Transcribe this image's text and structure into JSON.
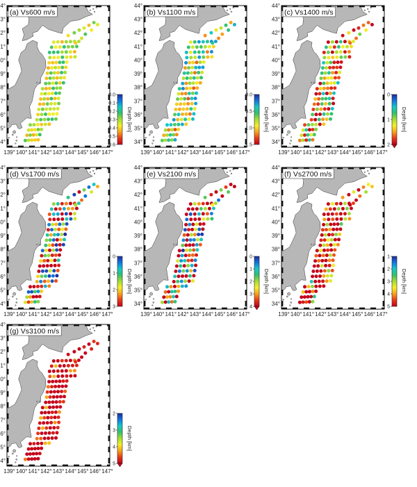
{
  "colors": {
    "land": "#b7b7b7",
    "sea": "#ffffff",
    "frame": "#111111",
    "label_box": "#ffffff",
    "colormap": [
      "#c4001a",
      "#e8391a",
      "#f7a21b",
      "#f4ee2a",
      "#a5dd35",
      "#35c06a",
      "#16c8c8",
      "#1476e0",
      "#1d2ca0"
    ]
  },
  "axes": {
    "lon_ticks": [
      "139°",
      "140°",
      "141°",
      "142°",
      "143°",
      "144°",
      "145°",
      "146°",
      "147°"
    ],
    "lat_ticks": [
      "34°",
      "35°",
      "36°",
      "37°",
      "38°",
      "39°",
      "40°",
      "41°",
      "42°",
      "43°",
      "44°"
    ],
    "lon_range": [
      138.8,
      147.2
    ],
    "lat_range": [
      33.6,
      44.0
    ]
  },
  "colorbar_label": "Depth [km]",
  "panels": [
    {
      "label": "(a) Vs600 m/s",
      "colorbar": {
        "min": 0.0,
        "max": 0.6,
        "ticks": [
          "0.0",
          "0.1",
          "0.2",
          "0.3",
          "0.4",
          "0.5",
          "0.6"
        ],
        "extend_min": false
      },
      "mean_depth": 0.32,
      "spread": 0.2,
      "deep_shelf_bias": 0.0
    },
    {
      "label": "(b) Vs1100 m/s",
      "colorbar": {
        "min": 0.0,
        "max": 1.5,
        "ticks": [
          "0.0",
          "0.5",
          "1.0",
          "1.5"
        ],
        "extend_min": false
      },
      "mean_depth": 0.75,
      "spread": 0.35,
      "deep_shelf_bias": 0.0
    },
    {
      "label": "(c) Vs1400 m/s",
      "colorbar": {
        "min": 0.0,
        "max": 2.0,
        "ticks": [
          "0",
          "1",
          "2"
        ],
        "extend_min": true
      },
      "mean_depth": 1.3,
      "spread": 0.45,
      "deep_shelf_bias": 0.2
    },
    {
      "label": "(d) Vs1700 m/s",
      "colorbar": {
        "min": 0.0,
        "max": 3.0,
        "ticks": [
          "0",
          "1",
          "2",
          "3"
        ],
        "extend_min": false
      },
      "mean_depth": 1.8,
      "spread": 0.6,
      "deep_shelf_bias": 0.3
    },
    {
      "label": "(e) Vs2100 m/s",
      "colorbar": {
        "min": 0.0,
        "max": 4.0,
        "ticks": [
          "0",
          "1",
          "2",
          "3",
          "4"
        ],
        "extend_min": true
      },
      "mean_depth": 2.9,
      "spread": 0.7,
      "deep_shelf_bias": 0.4
    },
    {
      "label": "(f) Vs2700 m/s",
      "colorbar": {
        "min": 1.0,
        "max": 5.0,
        "ticks": [
          "1",
          "2",
          "3",
          "4",
          "5"
        ],
        "extend_min": false
      },
      "mean_depth": 4.6,
      "spread": 0.5,
      "deep_shelf_bias": 0.6
    },
    {
      "label": "(g) Vs3100 m/s",
      "colorbar": {
        "min": 2.0,
        "max": 5.0,
        "ticks": [
          "2",
          "3",
          "4",
          "5"
        ],
        "extend_min": true
      },
      "mean_depth": 4.95,
      "spread": 0.15,
      "deep_shelf_bias": 0.8
    }
  ]
}
